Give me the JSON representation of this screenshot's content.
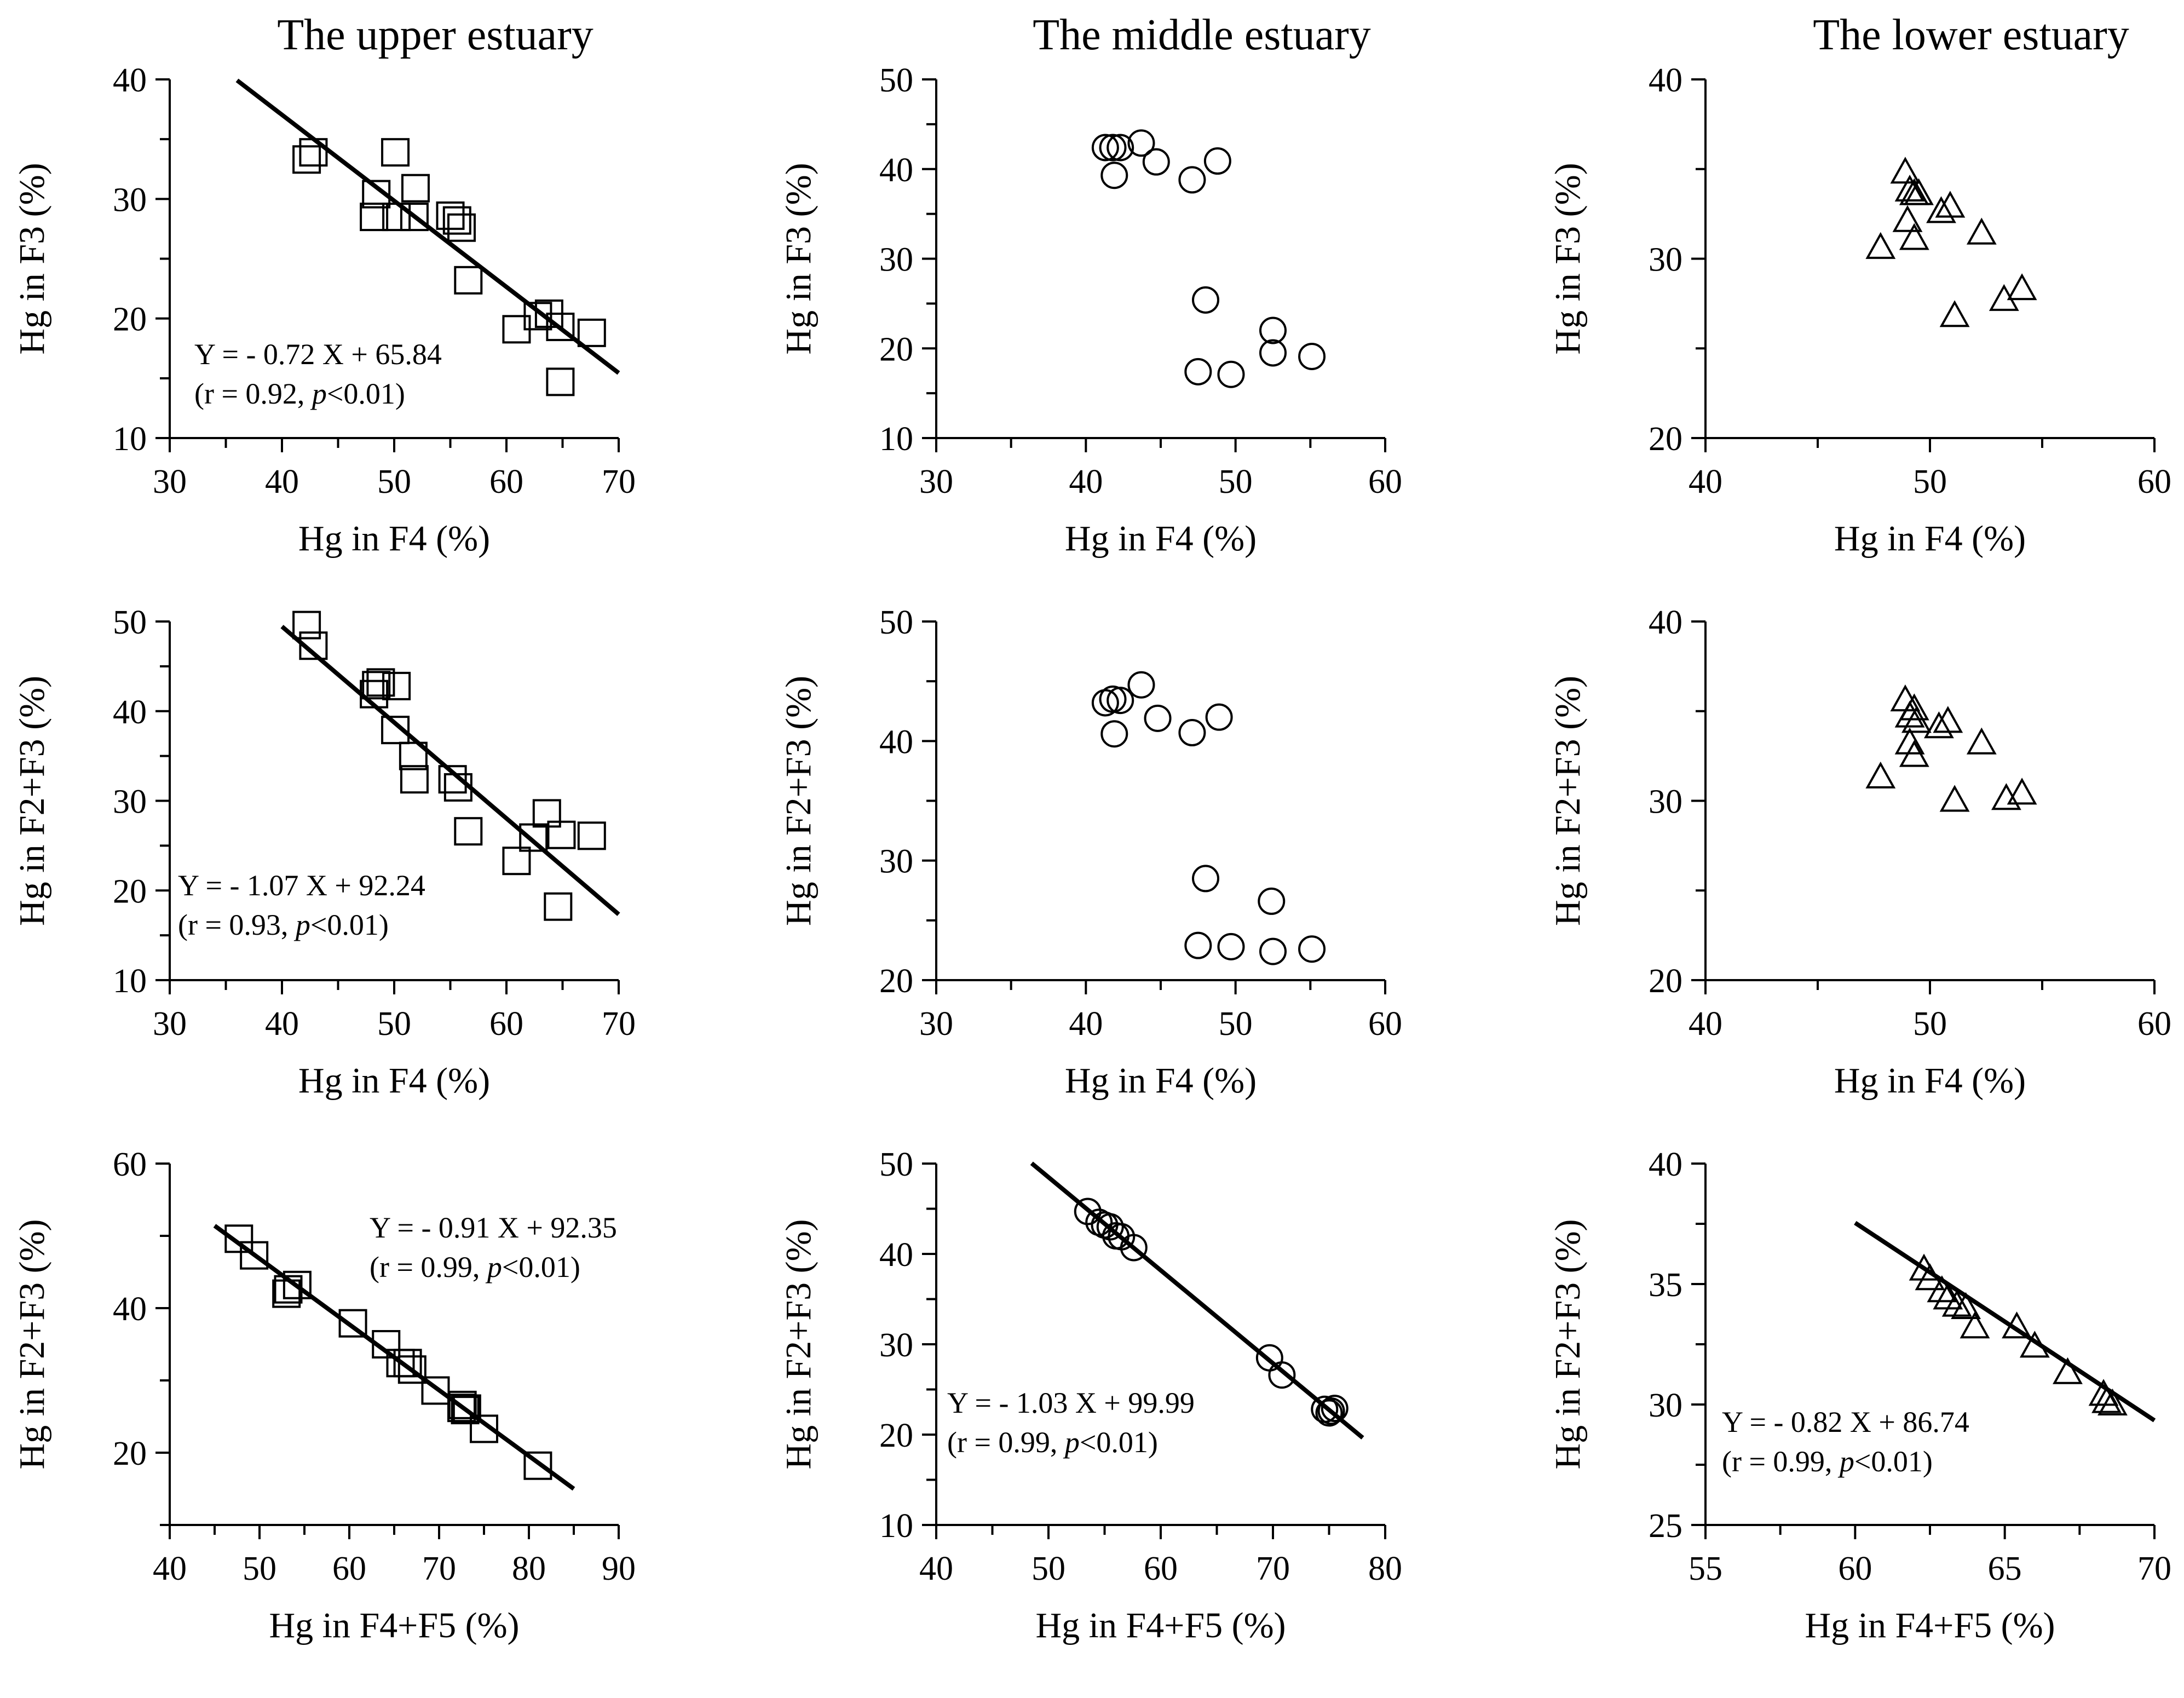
{
  "chart_data": [
    {
      "type": "scatter",
      "panel": "upper-row1",
      "title": "The upper estuary",
      "xlabel": "Hg in F4 (%)",
      "ylabel": "Hg in F3 (%)",
      "xlim": [
        30,
        70
      ],
      "ylim": [
        10,
        40
      ],
      "xticks": [
        30,
        40,
        50,
        60,
        70
      ],
      "yticks": [
        10,
        20,
        30,
        40
      ],
      "marker": "square",
      "points": [
        [
          42.2,
          33.3
        ],
        [
          42.8,
          33.9
        ],
        [
          48.4,
          30.4
        ],
        [
          48.2,
          28.5
        ],
        [
          50.2,
          28.5
        ],
        [
          50.1,
          33.9
        ],
        [
          51.8,
          28.5
        ],
        [
          51.9,
          30.9
        ],
        [
          55.0,
          28.6
        ],
        [
          55.6,
          28.2
        ],
        [
          56.0,
          27.6
        ],
        [
          56.6,
          23.2
        ],
        [
          60.9,
          19.1
        ],
        [
          62.8,
          20.2
        ],
        [
          63.8,
          20.4
        ],
        [
          64.8,
          19.3
        ],
        [
          64.8,
          14.7
        ],
        [
          67.6,
          18.8
        ]
      ],
      "fit": {
        "x": [
          36,
          70
        ],
        "slope": -0.72,
        "intercept": 65.84
      },
      "equation": "Y = - 0.72 X + 65.84",
      "stats_prefix": "(r = 0.92, ",
      "stats_p": "p",
      "stats_suffix": "<0.01)"
    },
    {
      "type": "scatter",
      "panel": "middle-row1",
      "title": "The middle estuary",
      "xlabel": "Hg in F4 (%)",
      "ylabel": "Hg in F3 (%)",
      "xlim": [
        30,
        60
      ],
      "ylim": [
        10,
        50
      ],
      "xticks": [
        30,
        40,
        50,
        60
      ],
      "yticks": [
        10,
        20,
        30,
        40,
        50
      ],
      "marker": "circle",
      "points": [
        [
          41.3,
          42.4
        ],
        [
          41.8,
          42.4
        ],
        [
          42.3,
          42.4
        ],
        [
          43.7,
          42.9
        ],
        [
          41.9,
          39.3
        ],
        [
          44.7,
          40.8
        ],
        [
          47.1,
          38.8
        ],
        [
          48.8,
          40.9
        ],
        [
          48.0,
          25.4
        ],
        [
          47.5,
          17.4
        ],
        [
          49.7,
          17.1
        ],
        [
          52.5,
          22.0
        ],
        [
          52.5,
          19.5
        ],
        [
          55.1,
          19.1
        ]
      ]
    },
    {
      "type": "scatter",
      "panel": "lower-row1",
      "title": "The lower estuary",
      "xlabel": "Hg in F4 (%)",
      "ylabel": "Hg in F3 (%)",
      "xlim": [
        40,
        60
      ],
      "ylim": [
        20,
        40
      ],
      "xticks": [
        40,
        50,
        60
      ],
      "yticks": [
        20,
        30,
        40
      ],
      "marker": "triangle",
      "points": [
        [
          47.8,
          30.6
        ],
        [
          48.9,
          34.8
        ],
        [
          49.1,
          33.8
        ],
        [
          49.3,
          33.6
        ],
        [
          49.5,
          33.6
        ],
        [
          49.0,
          32.1
        ],
        [
          49.3,
          31.1
        ],
        [
          50.5,
          32.6
        ],
        [
          50.9,
          32.9
        ],
        [
          52.3,
          31.4
        ],
        [
          51.1,
          26.8
        ],
        [
          53.3,
          27.7
        ],
        [
          54.1,
          28.3
        ]
      ]
    },
    {
      "type": "scatter",
      "panel": "upper-row2",
      "title": "",
      "xlabel": "Hg in F4 (%)",
      "ylabel": "Hg in F2+F3 (%)",
      "xlim": [
        30,
        70
      ],
      "ylim": [
        10,
        50
      ],
      "xticks": [
        30,
        40,
        50,
        60,
        70
      ],
      "yticks": [
        10,
        20,
        30,
        40,
        50
      ],
      "marker": "square",
      "points": [
        [
          42.2,
          49.6
        ],
        [
          42.8,
          47.3
        ],
        [
          48.4,
          42.9
        ],
        [
          48.2,
          41.9
        ],
        [
          48.8,
          43.2
        ],
        [
          50.2,
          42.8
        ],
        [
          50.1,
          37.9
        ],
        [
          51.7,
          35.0
        ],
        [
          51.8,
          32.4
        ],
        [
          55.2,
          32.4
        ],
        [
          55.7,
          31.5
        ],
        [
          56.6,
          26.6
        ],
        [
          60.9,
          23.3
        ],
        [
          62.4,
          25.9
        ],
        [
          63.6,
          28.6
        ],
        [
          64.9,
          26.2
        ],
        [
          64.6,
          18.2
        ],
        [
          67.6,
          26.1
        ]
      ],
      "fit": {
        "x": [
          40,
          70
        ],
        "slope": -1.07,
        "intercept": 92.24
      },
      "equation": "Y = - 1.07 X + 92.24",
      "stats_prefix": "(r = 0.93, ",
      "stats_p": "p",
      "stats_suffix": "<0.01)"
    },
    {
      "type": "scatter",
      "panel": "middle-row2",
      "title": "",
      "xlabel": "Hg in F4 (%)",
      "ylabel": "Hg in F2+F3 (%)",
      "xlim": [
        30,
        60
      ],
      "ylim": [
        20,
        50
      ],
      "xticks": [
        30,
        40,
        50,
        60
      ],
      "yticks": [
        20,
        30,
        40,
        50
      ],
      "marker": "circle",
      "points": [
        [
          41.3,
          43.2
        ],
        [
          41.8,
          43.5
        ],
        [
          42.3,
          43.4
        ],
        [
          43.7,
          44.7
        ],
        [
          41.9,
          40.6
        ],
        [
          44.8,
          41.9
        ],
        [
          47.1,
          40.7
        ],
        [
          48.9,
          42.0
        ],
        [
          48.0,
          28.5
        ],
        [
          47.5,
          22.9
        ],
        [
          49.7,
          22.8
        ],
        [
          52.4,
          26.6
        ],
        [
          52.5,
          22.4
        ],
        [
          55.1,
          22.6
        ]
      ]
    },
    {
      "type": "scatter",
      "panel": "lower-row2",
      "title": "",
      "xlabel": "Hg in F4 (%)",
      "ylabel": "Hg in F2+F3 (%)",
      "xlim": [
        40,
        60
      ],
      "ylim": [
        20,
        40
      ],
      "xticks": [
        40,
        50,
        60
      ],
      "yticks": [
        20,
        30,
        40
      ],
      "marker": "triangle",
      "points": [
        [
          47.8,
          31.3
        ],
        [
          48.9,
          35.6
        ],
        [
          49.1,
          34.7
        ],
        [
          49.3,
          35.1
        ],
        [
          49.4,
          34.4
        ],
        [
          49.1,
          33.2
        ],
        [
          49.3,
          32.5
        ],
        [
          50.4,
          34.1
        ],
        [
          50.8,
          34.4
        ],
        [
          52.3,
          33.2
        ],
        [
          51.1,
          30.0
        ],
        [
          53.4,
          30.1
        ],
        [
          54.1,
          30.4
        ]
      ]
    },
    {
      "type": "scatter",
      "panel": "upper-row3",
      "title": "",
      "xlabel": "Hg in F4+F5 (%)",
      "ylabel": "Hg in F2+F3 (%)",
      "xlim": [
        40,
        90
      ],
      "ylim": [
        10,
        60
      ],
      "xticks": [
        40,
        50,
        60,
        70,
        80,
        90
      ],
      "yticks": [
        20,
        40,
        60
      ],
      "marker": "square",
      "points": [
        [
          47.7,
          49.6
        ],
        [
          49.4,
          47.3
        ],
        [
          53.0,
          42.0
        ],
        [
          53.2,
          42.6
        ],
        [
          54.2,
          43.2
        ],
        [
          60.4,
          37.9
        ],
        [
          64.1,
          35.0
        ],
        [
          65.7,
          32.4
        ],
        [
          66.5,
          32.4
        ],
        [
          67.0,
          31.5
        ],
        [
          69.6,
          28.6
        ],
        [
          72.5,
          26.2
        ],
        [
          72.9,
          25.9
        ],
        [
          73.1,
          26.1
        ],
        [
          72.6,
          26.6
        ],
        [
          75.0,
          23.3
        ],
        [
          81.0,
          18.2
        ]
      ],
      "fit": {
        "x": [
          45,
          85
        ],
        "slope": -0.91,
        "intercept": 92.35
      },
      "equation": "Y = - 0.91 X + 92.35",
      "stats_prefix": "(r = 0.99, ",
      "stats_p": "p",
      "stats_suffix": "<0.01)"
    },
    {
      "type": "scatter",
      "panel": "middle-row3",
      "title": "",
      "xlabel": "Hg in F4+F5 (%)",
      "ylabel": "Hg in F2+F3 (%)",
      "xlim": [
        40,
        80
      ],
      "ylim": [
        10,
        50
      ],
      "xticks": [
        40,
        50,
        60,
        70,
        80
      ],
      "yticks": [
        10,
        20,
        30,
        40,
        50
      ],
      "marker": "circle",
      "points": [
        [
          53.5,
          44.7
        ],
        [
          54.5,
          43.5
        ],
        [
          55.0,
          43.2
        ],
        [
          56.0,
          42.0
        ],
        [
          55.5,
          43.0
        ],
        [
          56.5,
          41.9
        ],
        [
          57.6,
          40.7
        ],
        [
          69.7,
          28.5
        ],
        [
          70.8,
          26.6
        ],
        [
          74.6,
          22.8
        ],
        [
          75.0,
          22.4
        ],
        [
          75.2,
          22.6
        ],
        [
          75.5,
          22.9
        ]
      ],
      "fit": {
        "x": [
          48.5,
          78
        ],
        "slope": -1.03,
        "intercept": 99.99
      },
      "equation": "Y = - 1.03 X + 99.99",
      "stats_prefix": "(r = 0.99, ",
      "stats_p": "p",
      "stats_suffix": "<0.01)"
    },
    {
      "type": "scatter",
      "panel": "lower-row3",
      "title": "",
      "xlabel": "Hg in F4+F5 (%)",
      "ylabel": "Hg in F2+F3 (%)",
      "xlim": [
        55,
        70
      ],
      "ylim": [
        25,
        40
      ],
      "xticks": [
        55,
        60,
        65,
        70
      ],
      "yticks": [
        25,
        30,
        35,
        40
      ],
      "marker": "triangle",
      "points": [
        [
          62.3,
          35.6
        ],
        [
          62.5,
          35.2
        ],
        [
          62.9,
          34.7
        ],
        [
          63.1,
          34.4
        ],
        [
          63.4,
          34.1
        ],
        [
          63.7,
          34.0
        ],
        [
          64.0,
          33.2
        ],
        [
          65.4,
          33.2
        ],
        [
          66.0,
          32.4
        ],
        [
          67.1,
          31.3
        ],
        [
          68.3,
          30.4
        ],
        [
          68.4,
          30.1
        ],
        [
          68.6,
          30.0
        ]
      ],
      "fit": {
        "x": [
          60,
          70
        ],
        "slope": -0.82,
        "intercept": 86.74
      },
      "equation": "Y = - 0.82 X + 86.74",
      "stats_prefix": "(r = 0.99, ",
      "stats_p": "p",
      "stats_suffix": "<0.01)"
    }
  ]
}
